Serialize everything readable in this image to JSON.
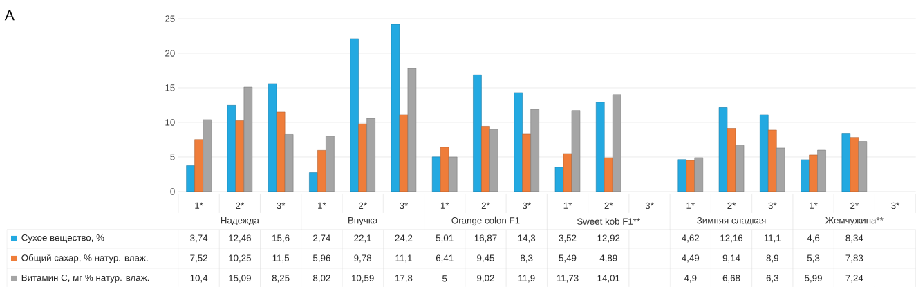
{
  "chart_data": {
    "type": "bar",
    "categories": [
      "1*",
      "2*",
      "3*",
      "1*",
      "2*",
      "3*",
      "1*",
      "2*",
      "3*",
      "1*",
      "2*",
      "3*",
      "1*",
      "2*",
      "3*",
      "1*",
      "2*",
      "3*"
    ],
    "series": [
      {
        "name": "Сухое вещество, %",
        "color": "#23a9e1",
        "values": [
          3.74,
          12.46,
          15.6,
          2.74,
          22.1,
          24.2,
          5.01,
          16.87,
          14.3,
          3.52,
          12.92,
          null,
          4.62,
          12.16,
          11.1,
          4.6,
          8.34,
          null
        ],
        "value_labels": [
          "3,74",
          "12,46",
          "15,6",
          "2,74",
          "22,1",
          "24,2",
          "5,01",
          "16,87",
          "14,3",
          "3,52",
          "12,92",
          null,
          "4,62",
          "12,16",
          "11,1",
          "4,6",
          "8,34",
          null
        ]
      },
      {
        "name": "Общий сахар, % натур. влаж.",
        "color": "#ef7d3a",
        "values": [
          7.52,
          10.25,
          11.5,
          5.96,
          9.78,
          11.1,
          6.41,
          9.45,
          8.3,
          5.49,
          4.89,
          null,
          4.49,
          9.14,
          8.9,
          5.3,
          7.83,
          null
        ],
        "value_labels": [
          "7,52",
          "10,25",
          "11,5",
          "5,96",
          "9,78",
          "11,1",
          "6,41",
          "9,45",
          "8,3",
          "5,49",
          "4,89",
          null,
          "4,49",
          "9,14",
          "8,9",
          "5,3",
          "7,83",
          null
        ]
      },
      {
        "name": "Витамин С, мг % натур. влаж.",
        "color": "#a5a5a5",
        "values": [
          10.4,
          15.09,
          8.25,
          8.02,
          10.59,
          17.8,
          5,
          9.02,
          11.9,
          11.73,
          14.01,
          null,
          4.9,
          6.68,
          6.3,
          5.99,
          7.24,
          null
        ],
        "value_labels": [
          "10,4",
          "15,09",
          "8,25",
          "8,02",
          "10,59",
          "17,8",
          "5",
          "9,02",
          "11,9",
          "11,73",
          "14,01",
          null,
          "4,9",
          "6,68",
          "6,3",
          "5,99",
          "7,24",
          null
        ]
      }
    ],
    "annotations": [
      "A",
      "Надежда",
      "Внучка",
      "Orange colon F1",
      "Sweet kob F1**",
      "Зимняя сладкая",
      "Жемчужина**"
    ],
    "ylim": [
      0,
      25
    ],
    "yticks": [
      0,
      5,
      10,
      15,
      20,
      25
    ],
    "grid": "y",
    "legend": "bottom"
  }
}
